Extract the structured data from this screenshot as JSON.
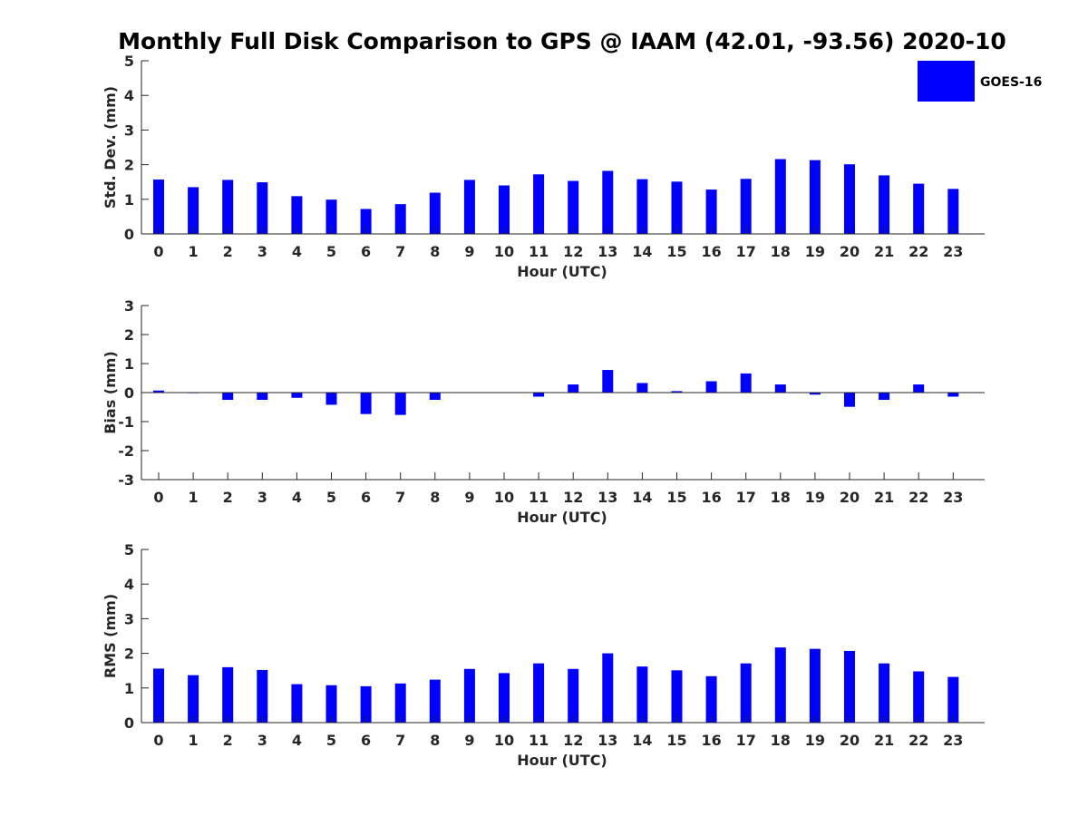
{
  "title": "Monthly Full Disk Comparison to GPS @ IAAM (42.01, -93.56) 2020-10",
  "legend": {
    "label": "GOES-16",
    "color": "#0000ff"
  },
  "chart_data": [
    {
      "type": "bar",
      "name": "std-dev",
      "categories": [
        "0",
        "1",
        "2",
        "3",
        "4",
        "5",
        "6",
        "7",
        "8",
        "9",
        "10",
        "11",
        "12",
        "13",
        "14",
        "15",
        "16",
        "17",
        "18",
        "19",
        "20",
        "21",
        "22",
        "23"
      ],
      "series": [
        {
          "name": "GOES-16",
          "values": [
            1.57,
            1.35,
            1.56,
            1.49,
            1.09,
            0.99,
            0.72,
            0.86,
            1.19,
            1.56,
            1.4,
            1.72,
            1.53,
            1.82,
            1.58,
            1.51,
            1.28,
            1.59,
            2.16,
            2.13,
            2.01,
            1.69,
            1.45,
            1.3
          ]
        }
      ],
      "xlabel": "Hour (UTC)",
      "ylabel": "Std. Dev. (mm)",
      "ylim": [
        0,
        5
      ],
      "yticks": [
        "0",
        "1",
        "2",
        "3",
        "4",
        "5"
      ]
    },
    {
      "type": "bar",
      "name": "bias",
      "categories": [
        "0",
        "1",
        "2",
        "3",
        "4",
        "5",
        "6",
        "7",
        "8",
        "9",
        "10",
        "11",
        "12",
        "13",
        "14",
        "15",
        "16",
        "17",
        "18",
        "19",
        "20",
        "21",
        "22",
        "23"
      ],
      "series": [
        {
          "name": "GOES-16",
          "values": [
            0.07,
            -0.02,
            -0.25,
            -0.25,
            -0.18,
            -0.42,
            -0.74,
            -0.77,
            -0.25,
            0.0,
            0.0,
            -0.14,
            0.28,
            0.78,
            0.33,
            0.05,
            0.39,
            0.66,
            0.28,
            -0.07,
            -0.49,
            -0.25,
            0.28,
            -0.14
          ]
        }
      ],
      "xlabel": "Hour (UTC)",
      "ylabel": "Bias (mm)",
      "ylim": [
        -3,
        3
      ],
      "yticks": [
        "-3",
        "-2",
        "-1",
        "0",
        "1",
        "2",
        "3"
      ]
    },
    {
      "type": "bar",
      "name": "rms",
      "categories": [
        "0",
        "1",
        "2",
        "3",
        "4",
        "5",
        "6",
        "7",
        "8",
        "9",
        "10",
        "11",
        "12",
        "13",
        "14",
        "15",
        "16",
        "17",
        "18",
        "19",
        "20",
        "21",
        "22",
        "23"
      ],
      "series": [
        {
          "name": "GOES-16",
          "values": [
            1.56,
            1.37,
            1.6,
            1.52,
            1.11,
            1.08,
            1.05,
            1.13,
            1.24,
            1.55,
            1.43,
            1.71,
            1.55,
            2.0,
            1.62,
            1.51,
            1.34,
            1.71,
            2.17,
            2.13,
            2.07,
            1.71,
            1.48,
            1.32
          ]
        }
      ],
      "xlabel": "Hour (UTC)",
      "ylabel": "RMS (mm)",
      "ylim": [
        0,
        5
      ],
      "yticks": [
        "0",
        "1",
        "2",
        "3",
        "4",
        "5"
      ]
    }
  ]
}
